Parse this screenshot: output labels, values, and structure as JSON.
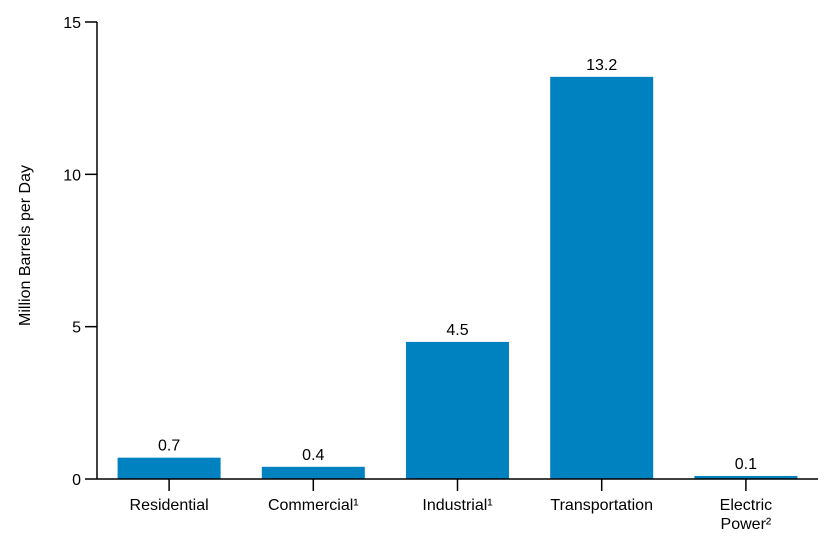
{
  "chart_data": {
    "type": "bar",
    "title": "",
    "xlabel": "",
    "ylabel": "Million Barrels per Day",
    "ylim": [
      0,
      15
    ],
    "yticks": [
      0,
      5,
      10,
      15
    ],
    "grid": false,
    "legend": "none",
    "bar_color": "#0082C0",
    "categories": [
      [
        "Residential"
      ],
      [
        "Commercial¹"
      ],
      [
        "Industrial¹"
      ],
      [
        "Transportation"
      ],
      [
        "Electric",
        "Power²"
      ]
    ],
    "values": [
      0.7,
      0.4,
      4.5,
      13.2,
      0.1
    ],
    "value_labels": [
      "0.7",
      "0.4",
      "4.5",
      "13.2",
      "0.1"
    ]
  }
}
